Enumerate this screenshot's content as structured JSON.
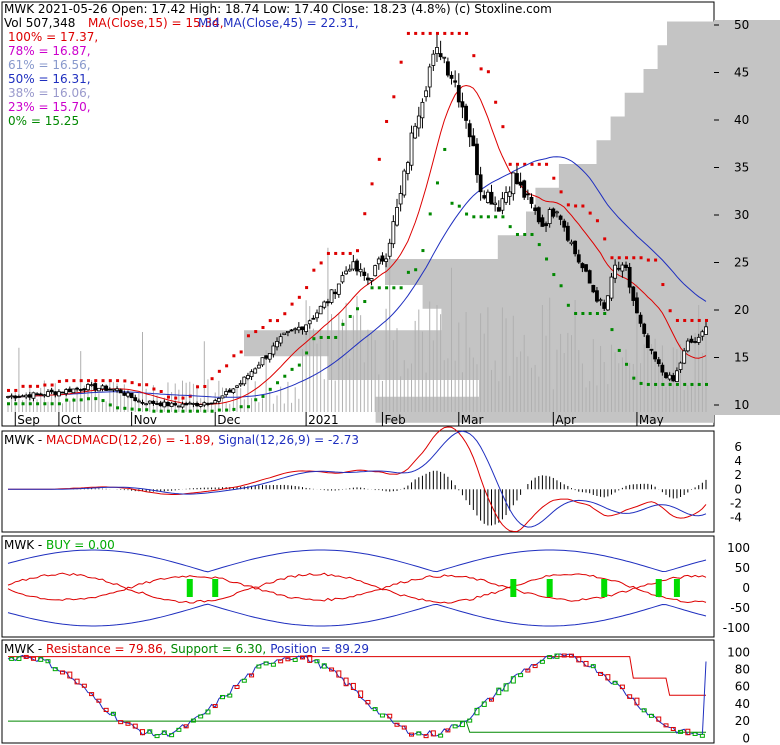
{
  "colors": {
    "up": "#ffffff",
    "down": "#000000",
    "ma15": "#dd0000",
    "ma45": "#1f2fbf",
    "volume": "#b0b0b0",
    "vprofile": "#c4c4c4",
    "resistance_dots": "#dd0000",
    "support_dots": "#008800",
    "fib_100": "#dd0000",
    "fib_78": "#cc00cc",
    "fib_61": "#8899cc",
    "fib_50": "#1f2fbf",
    "fib_38": "#9999cc",
    "fib_23": "#cc00cc",
    "fib_0": "#008800",
    "macd": "#dd0000",
    "signal": "#1f2fbf",
    "buy_marker": "#00dd00",
    "position_up": "#00aa00",
    "position_down": "#dd0000"
  },
  "header": {
    "line1": "MWK  2021-05-26 Open: 17.42  High: 18.74  Low: 17.40  Close: 18.23 (4.8%)  (c) Stoxline.com",
    "vol_label": "Vol 507,348",
    "ma15_label": "MA(Close,15) = 15.34,",
    "ma45_label": "Mid MA(Close,45) = 22.31,",
    "fib": [
      {
        "label": "100% = 17.37,",
        "key": "fib_100"
      },
      {
        "label": "78% = 16.87,",
        "key": "fib_78"
      },
      {
        "label": "61% = 16.56,",
        "key": "fib_61"
      },
      {
        "label": "50% = 16.31,",
        "key": "fib_50"
      },
      {
        "label": "38% = 16.06,",
        "key": "fib_38"
      },
      {
        "label": "23% = 15.70,",
        "key": "fib_23"
      },
      {
        "label": "0% = 15.25",
        "key": "fib_0"
      }
    ]
  },
  "panels": {
    "macd": {
      "title": "MWK - ",
      "macd_label": "MACDMACD(12,26) = -1.89,",
      "signal_label": "Signal(12,26,9) = -2.73",
      "ticks": [
        "6",
        "4",
        "2",
        "0",
        "-2",
        "-4"
      ]
    },
    "buy": {
      "title": "MWK - ",
      "buy_label": "BUY = 0.00",
      "ticks": [
        "100",
        "50",
        "0",
        "-50",
        "-100"
      ]
    },
    "position": {
      "title": "MWK - ",
      "resistance_label": "Resistance = 79.86,",
      "support_label": "Support = 6.30,",
      "position_label": "Position = 89.29",
      "ticks": [
        "100",
        "80",
        "60",
        "40",
        "20",
        "0"
      ]
    }
  },
  "chart_data": {
    "type": "candlestick",
    "symbol": "MWK",
    "price_ylim": [
      8,
      52
    ],
    "price_ticks": [
      "50",
      "45",
      "40",
      "35",
      "30",
      "25",
      "20",
      "15",
      "10"
    ],
    "x_labels": [
      {
        "label": "Sep",
        "index": 2
      },
      {
        "label": "Oct",
        "index": 14
      },
      {
        "label": "Nov",
        "index": 34
      },
      {
        "label": "Dec",
        "index": 57
      },
      {
        "label": "2021",
        "index": 82
      },
      {
        "label": "Feb",
        "index": 103
      },
      {
        "label": "Mar",
        "index": 124
      },
      {
        "label": "Apr",
        "index": 150
      },
      {
        "label": "May",
        "index": 173
      }
    ],
    "close_anchors": [
      [
        0,
        10.9
      ],
      [
        8,
        11.1
      ],
      [
        14,
        11.4
      ],
      [
        22,
        11.9
      ],
      [
        30,
        11.6
      ],
      [
        36,
        10.4
      ],
      [
        45,
        10.0
      ],
      [
        52,
        10.1
      ],
      [
        58,
        10.6
      ],
      [
        64,
        12.3
      ],
      [
        70,
        14.8
      ],
      [
        76,
        17.2
      ],
      [
        82,
        18.6
      ],
      [
        88,
        21.0
      ],
      [
        94,
        24.8
      ],
      [
        99,
        23.2
      ],
      [
        104,
        26.0
      ],
      [
        108,
        32.0
      ],
      [
        112,
        40.0
      ],
      [
        116,
        45.5
      ],
      [
        119,
        47.5
      ],
      [
        123,
        44.0
      ],
      [
        126,
        40.5
      ],
      [
        130,
        33.0
      ],
      [
        135,
        31.0
      ],
      [
        139,
        34.0
      ],
      [
        143,
        31.5
      ],
      [
        147,
        29.0
      ],
      [
        151,
        31.0
      ],
      [
        156,
        26.0
      ],
      [
        161,
        22.0
      ],
      [
        164,
        20.0
      ],
      [
        167,
        24.5
      ],
      [
        170,
        24.0
      ],
      [
        173,
        19.5
      ],
      [
        176,
        16.0
      ],
      [
        180,
        13.5
      ],
      [
        183,
        12.5
      ],
      [
        185,
        14.5
      ],
      [
        187,
        16.5
      ],
      [
        190,
        16.8
      ],
      [
        192,
        18.23
      ]
    ],
    "volume_profile": [
      {
        "price": 49.0,
        "size": 0.1
      },
      {
        "price": 46.5,
        "size": 0.12
      },
      {
        "price": 44.0,
        "size": 0.15
      },
      {
        "price": 41.5,
        "size": 0.19
      },
      {
        "price": 39.0,
        "size": 0.22
      },
      {
        "price": 36.5,
        "size": 0.25
      },
      {
        "price": 34.0,
        "size": 0.33
      },
      {
        "price": 31.5,
        "size": 0.38
      },
      {
        "price": 29.0,
        "size": 0.4
      },
      {
        "price": 26.5,
        "size": 0.46
      },
      {
        "price": 24.0,
        "size": 0.7
      },
      {
        "price": 21.5,
        "size": 0.62
      },
      {
        "price": 19.0,
        "size": 0.58
      },
      {
        "price": 16.5,
        "size": 1.0
      },
      {
        "price": 14.0,
        "size": 0.82
      },
      {
        "price": 11.5,
        "size": 0.5
      },
      {
        "price": 9.5,
        "size": 0.72
      }
    ],
    "last": {
      "open": 17.42,
      "high": 18.74,
      "low": 17.4,
      "close": 18.23,
      "volume": 507348
    },
    "ma15": 15.34,
    "ma45": 22.31,
    "macd": -1.89,
    "signal": -2.73,
    "buy": 0.0,
    "resistance": 79.86,
    "support": 6.3,
    "position": 89.29
  }
}
